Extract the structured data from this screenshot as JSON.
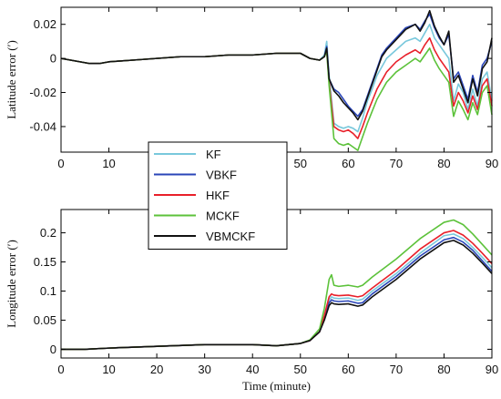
{
  "chart_data": [
    {
      "type": "line",
      "ylabel": "Latitude error (′)",
      "xlim": [
        0,
        90
      ],
      "ylim": [
        -0.055,
        0.03
      ],
      "xticks": [
        0,
        10,
        20,
        30,
        40,
        50,
        60,
        70,
        80,
        90
      ],
      "yticks": [
        -0.04,
        -0.02,
        0,
        0.02
      ],
      "ytick_labels": [
        "-0.04",
        "-0.02",
        "0",
        "0.02"
      ],
      "legend_position": "center-left",
      "series": [
        {
          "name": "KF",
          "color": "#79c8dc",
          "x": [
            0,
            2,
            4,
            6,
            8,
            10,
            15,
            20,
            25,
            30,
            35,
            40,
            45,
            50,
            52,
            54,
            55,
            55.5,
            56,
            57,
            58,
            59,
            60,
            61,
            62,
            63,
            64,
            65,
            66,
            67,
            68,
            70,
            72,
            74,
            75,
            76,
            77,
            78,
            79,
            80,
            81,
            82,
            83,
            84,
            85,
            86,
            87,
            88,
            89,
            90
          ],
          "y": [
            0,
            -0.001,
            -0.002,
            -0.003,
            -0.003,
            -0.002,
            -0.001,
            0,
            0.001,
            0.001,
            0.002,
            0.002,
            0.003,
            0.003,
            0,
            -0.001,
            0.002,
            0.01,
            -0.01,
            -0.038,
            -0.04,
            -0.041,
            -0.04,
            -0.041,
            -0.043,
            -0.035,
            -0.025,
            -0.018,
            -0.01,
            -0.005,
            0,
            0.005,
            0.01,
            0.012,
            0.01,
            0.015,
            0.02,
            0.012,
            0.008,
            0.004,
            0,
            -0.025,
            -0.015,
            -0.02,
            -0.03,
            -0.018,
            -0.028,
            -0.012,
            -0.008,
            -0.025
          ]
        },
        {
          "name": "VBKF",
          "color": "#2a45b8",
          "x": [
            0,
            2,
            4,
            6,
            8,
            10,
            15,
            20,
            25,
            30,
            35,
            40,
            45,
            50,
            52,
            54,
            55,
            55.5,
            56,
            57,
            58,
            59,
            60,
            61,
            62,
            63,
            64,
            65,
            66,
            67,
            68,
            70,
            72,
            74,
            75,
            76,
            77,
            78,
            79,
            80,
            81,
            82,
            83,
            84,
            85,
            86,
            87,
            88,
            89,
            90
          ],
          "y": [
            0,
            -0.001,
            -0.002,
            -0.003,
            -0.003,
            -0.002,
            -0.001,
            0,
            0.001,
            0.001,
            0.002,
            0.002,
            0.003,
            0.003,
            0,
            -0.001,
            0.001,
            0.007,
            -0.012,
            -0.018,
            -0.02,
            -0.024,
            -0.028,
            -0.031,
            -0.034,
            -0.03,
            -0.022,
            -0.014,
            -0.006,
            0.002,
            0.006,
            0.012,
            0.018,
            0.02,
            0.017,
            0.022,
            0.026,
            0.018,
            0.012,
            0.008,
            0.014,
            -0.012,
            -0.008,
            -0.016,
            -0.024,
            -0.01,
            -0.02,
            -0.004,
            0,
            0.01
          ]
        },
        {
          "name": "HKF",
          "color": "#e8202a",
          "x": [
            0,
            2,
            4,
            6,
            8,
            10,
            15,
            20,
            25,
            30,
            35,
            40,
            45,
            50,
            52,
            54,
            55,
            55.5,
            56,
            57,
            58,
            59,
            60,
            61,
            62,
            63,
            64,
            65,
            66,
            67,
            68,
            70,
            72,
            74,
            75,
            76,
            77,
            78,
            79,
            80,
            81,
            82,
            83,
            84,
            85,
            86,
            87,
            88,
            89,
            90
          ],
          "y": [
            0,
            -0.001,
            -0.002,
            -0.003,
            -0.003,
            -0.002,
            -0.001,
            0,
            0.001,
            0.001,
            0.002,
            0.002,
            0.003,
            0.003,
            0,
            -0.001,
            0.001,
            0.005,
            -0.014,
            -0.04,
            -0.042,
            -0.043,
            -0.042,
            -0.044,
            -0.047,
            -0.04,
            -0.032,
            -0.025,
            -0.018,
            -0.013,
            -0.008,
            -0.002,
            0.002,
            0.005,
            0.003,
            0.008,
            0.012,
            0.005,
            0,
            -0.004,
            -0.008,
            -0.028,
            -0.02,
            -0.025,
            -0.032,
            -0.022,
            -0.03,
            -0.016,
            -0.012,
            -0.028
          ]
        },
        {
          "name": "MCKF",
          "color": "#5cc23a",
          "x": [
            0,
            2,
            4,
            6,
            8,
            10,
            15,
            20,
            25,
            30,
            35,
            40,
            45,
            50,
            52,
            54,
            55,
            55.5,
            56,
            57,
            58,
            59,
            60,
            61,
            62,
            63,
            64,
            65,
            66,
            67,
            68,
            70,
            72,
            74,
            75,
            76,
            77,
            78,
            79,
            80,
            81,
            82,
            83,
            84,
            85,
            86,
            87,
            88,
            89,
            90
          ],
          "y": [
            0,
            -0.001,
            -0.002,
            -0.003,
            -0.003,
            -0.002,
            -0.001,
            0,
            0.001,
            0.001,
            0.002,
            0.002,
            0.003,
            0.003,
            0,
            -0.001,
            0.001,
            0.004,
            -0.016,
            -0.047,
            -0.05,
            -0.051,
            -0.05,
            -0.052,
            -0.054,
            -0.046,
            -0.038,
            -0.031,
            -0.024,
            -0.019,
            -0.014,
            -0.008,
            -0.004,
            0,
            -0.002,
            0.002,
            0.006,
            -0.001,
            -0.006,
            -0.01,
            -0.014,
            -0.034,
            -0.025,
            -0.03,
            -0.036,
            -0.026,
            -0.033,
            -0.02,
            -0.016,
            -0.033
          ]
        },
        {
          "name": "VBMCKF",
          "color": "#111111",
          "x": [
            0,
            2,
            4,
            6,
            8,
            10,
            15,
            20,
            25,
            30,
            35,
            40,
            45,
            50,
            52,
            54,
            55,
            55.5,
            56,
            57,
            58,
            59,
            60,
            61,
            62,
            63,
            64,
            65,
            66,
            67,
            68,
            70,
            72,
            74,
            75,
            76,
            77,
            78,
            79,
            80,
            81,
            82,
            83,
            84,
            85,
            86,
            87,
            88,
            89,
            90
          ],
          "y": [
            0,
            -0.001,
            -0.002,
            -0.003,
            -0.003,
            -0.002,
            -0.001,
            0,
            0.001,
            0.001,
            0.002,
            0.002,
            0.003,
            0.003,
            0,
            -0.001,
            0.001,
            0.006,
            -0.012,
            -0.019,
            -0.022,
            -0.026,
            -0.029,
            -0.032,
            -0.036,
            -0.031,
            -0.023,
            -0.015,
            -0.007,
            0.001,
            0.005,
            0.011,
            0.017,
            0.02,
            0.016,
            0.021,
            0.028,
            0.019,
            0.013,
            0.008,
            0.016,
            -0.014,
            -0.01,
            -0.018,
            -0.026,
            -0.012,
            -0.022,
            -0.006,
            -0.002,
            0.012
          ]
        }
      ]
    },
    {
      "type": "line",
      "xlabel": "Time (minute)",
      "ylabel": "Longitude error (′)",
      "xlim": [
        0,
        90
      ],
      "ylim": [
        -0.015,
        0.24
      ],
      "xticks": [
        0,
        10,
        20,
        30,
        40,
        50,
        60,
        70,
        80,
        90
      ],
      "yticks": [
        0,
        0.05,
        0.1,
        0.15,
        0.2
      ],
      "ytick_labels": [
        "0",
        "0.05",
        "0.1",
        "0.15",
        "0.2"
      ],
      "series": [
        {
          "name": "KF",
          "color": "#79c8dc",
          "x": [
            0,
            5,
            10,
            20,
            30,
            40,
            45,
            50,
            52,
            54,
            55,
            56,
            56.5,
            57,
            58,
            60,
            62,
            63,
            65,
            70,
            75,
            80,
            82,
            84,
            86,
            88,
            90
          ],
          "y": [
            0,
            0,
            0.002,
            0.005,
            0.008,
            0.008,
            0.006,
            0.01,
            0.015,
            0.03,
            0.055,
            0.085,
            0.09,
            0.088,
            0.087,
            0.088,
            0.084,
            0.086,
            0.1,
            0.13,
            0.165,
            0.195,
            0.198,
            0.19,
            0.175,
            0.158,
            0.14
          ]
        },
        {
          "name": "VBKF",
          "color": "#2a45b8",
          "x": [
            0,
            5,
            10,
            20,
            30,
            40,
            45,
            50,
            52,
            54,
            55,
            56,
            56.5,
            57,
            58,
            60,
            62,
            63,
            65,
            70,
            75,
            80,
            82,
            84,
            86,
            88,
            90
          ],
          "y": [
            0,
            0,
            0.002,
            0.005,
            0.008,
            0.008,
            0.006,
            0.01,
            0.015,
            0.03,
            0.052,
            0.08,
            0.085,
            0.083,
            0.082,
            0.083,
            0.079,
            0.08,
            0.095,
            0.125,
            0.16,
            0.188,
            0.192,
            0.184,
            0.17,
            0.152,
            0.134
          ]
        },
        {
          "name": "HKF",
          "color": "#e8202a",
          "x": [
            0,
            5,
            10,
            20,
            30,
            40,
            45,
            50,
            52,
            54,
            55,
            56,
            56.5,
            57,
            58,
            60,
            62,
            63,
            65,
            70,
            75,
            80,
            82,
            84,
            86,
            88,
            90
          ],
          "y": [
            0,
            0,
            0.002,
            0.005,
            0.008,
            0.008,
            0.006,
            0.01,
            0.015,
            0.03,
            0.058,
            0.09,
            0.095,
            0.093,
            0.092,
            0.093,
            0.09,
            0.092,
            0.105,
            0.136,
            0.172,
            0.2,
            0.204,
            0.196,
            0.182,
            0.165,
            0.147
          ]
        },
        {
          "name": "MCKF",
          "color": "#5cc23a",
          "x": [
            0,
            5,
            10,
            20,
            30,
            40,
            45,
            50,
            52,
            54,
            55,
            56,
            56.5,
            57,
            58,
            60,
            62,
            63,
            65,
            70,
            75,
            80,
            82,
            84,
            86,
            88,
            90
          ],
          "y": [
            0,
            0,
            0.002,
            0.005,
            0.008,
            0.008,
            0.006,
            0.01,
            0.016,
            0.035,
            0.07,
            0.12,
            0.128,
            0.11,
            0.108,
            0.11,
            0.107,
            0.11,
            0.124,
            0.155,
            0.19,
            0.218,
            0.222,
            0.214,
            0.198,
            0.18,
            0.162
          ]
        },
        {
          "name": "VBMCKF",
          "color": "#111111",
          "x": [
            0,
            5,
            10,
            20,
            30,
            40,
            45,
            50,
            52,
            54,
            55,
            56,
            56.5,
            57,
            58,
            60,
            62,
            63,
            65,
            70,
            75,
            80,
            82,
            84,
            86,
            88,
            90
          ],
          "y": [
            0,
            0,
            0.002,
            0.005,
            0.008,
            0.008,
            0.006,
            0.01,
            0.015,
            0.03,
            0.05,
            0.075,
            0.08,
            0.078,
            0.077,
            0.078,
            0.074,
            0.076,
            0.09,
            0.12,
            0.155,
            0.183,
            0.187,
            0.179,
            0.165,
            0.148,
            0.13
          ]
        }
      ]
    }
  ]
}
